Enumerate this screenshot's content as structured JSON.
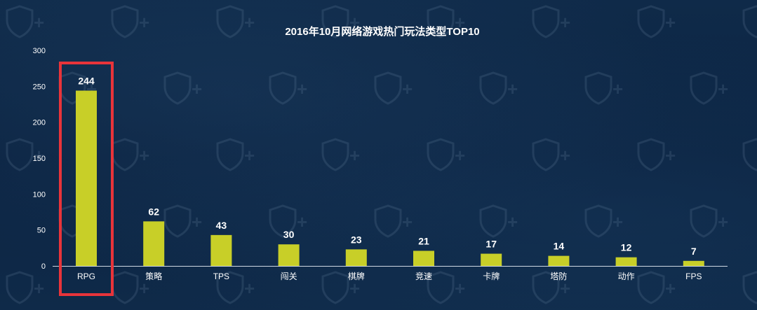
{
  "chart_data": {
    "type": "bar",
    "title": "2016年10月网络游戏热门玩法类型TOP10",
    "categories": [
      "RPG",
      "策略",
      "TPS",
      "闯关",
      "棋牌",
      "竞速",
      "卡牌",
      "塔防",
      "动作",
      "FPS"
    ],
    "values": [
      244,
      62,
      43,
      30,
      23,
      21,
      17,
      14,
      12,
      7
    ],
    "ylim": [
      0,
      300
    ],
    "yticks": [
      0,
      50,
      100,
      150,
      200,
      250,
      300
    ],
    "xlabel": "",
    "ylabel": "",
    "grid": false,
    "data_labels": true,
    "highlight_index": 0,
    "colors": {
      "bar": "#c8cf28",
      "highlight_box": "#e8343a",
      "axis": "#cfd8e3",
      "background": "#0e2846"
    }
  }
}
